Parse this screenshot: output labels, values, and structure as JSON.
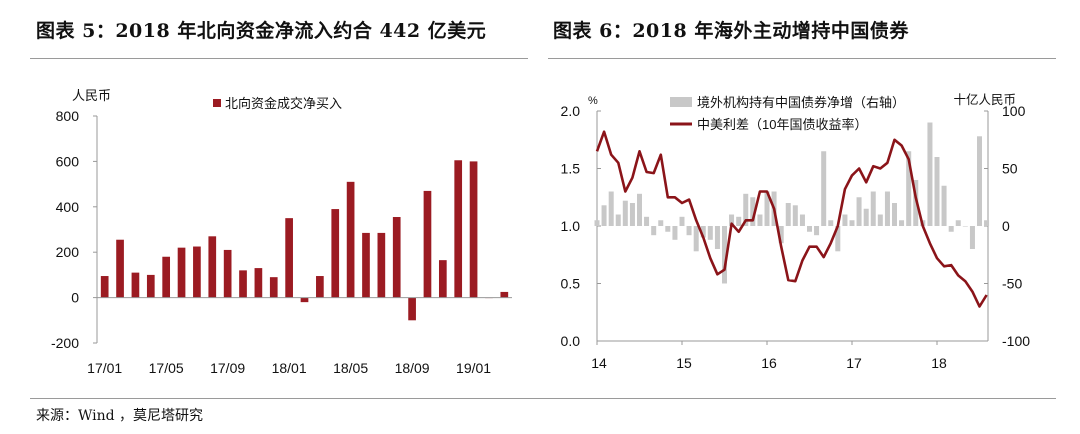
{
  "titles": {
    "left": "图表 5：2018 年北向资金净流入约合 442 亿美元",
    "right": "图表 6：2018 年海外主动增持中国债券"
  },
  "source": "来源：Wind ，莫尼塔研究",
  "colors": {
    "bar_dark_red": "#9b1b22",
    "bar_grey": "#c8c8c8",
    "line_dark_red": "#8b1419",
    "axis": "#999999"
  },
  "chart_data": [
    {
      "type": "bar",
      "unit_label": "人民币",
      "legend": "北向资金成交净买入",
      "legend_position": "top",
      "ylim": [
        -200,
        800
      ],
      "yticks": [
        -200,
        0,
        200,
        400,
        600,
        800
      ],
      "xtick_labels": [
        "17/01",
        "17/05",
        "17/09",
        "18/01",
        "18/05",
        "18/09",
        "19/01"
      ],
      "xtick_index": [
        0,
        4,
        8,
        12,
        16,
        20,
        24
      ],
      "categories": [
        "17/01",
        "17/02",
        "17/03",
        "17/04",
        "17/05",
        "17/06",
        "17/07",
        "17/08",
        "17/09",
        "17/10",
        "17/11",
        "17/12",
        "18/01",
        "18/02",
        "18/03",
        "18/04",
        "18/05",
        "18/06",
        "18/07",
        "18/08",
        "18/09",
        "18/10",
        "18/11",
        "18/12",
        "19/01",
        "19/02",
        "19/03"
      ],
      "series": [
        {
          "name": "北向资金成交净买入",
          "values": [
            95,
            255,
            110,
            100,
            180,
            220,
            225,
            270,
            210,
            120,
            130,
            90,
            350,
            -20,
            95,
            390,
            510,
            285,
            285,
            355,
            -100,
            470,
            165,
            605,
            600,
            0,
            25
          ]
        }
      ]
    },
    {
      "type": "line",
      "left_unit": "%",
      "right_unit": "十亿人民币",
      "ylim_left": [
        0.0,
        2.0
      ],
      "yticks_left": [
        0.0,
        0.5,
        1.0,
        1.5,
        2.0
      ],
      "ylim_right": [
        -100,
        100
      ],
      "yticks_right": [
        -100,
        -50,
        0,
        50,
        100
      ],
      "xlim": [
        14,
        18.6
      ],
      "xticks": [
        14,
        15,
        16,
        17,
        18
      ],
      "legend_position": "top",
      "series": [
        {
          "name": "境外机构持有中国债券净增（右轴）",
          "type": "bar",
          "axis": "right",
          "x": [
            14.0,
            14.083,
            14.167,
            14.25,
            14.333,
            14.417,
            14.5,
            14.583,
            14.667,
            14.75,
            14.833,
            14.917,
            15.0,
            15.083,
            15.167,
            15.25,
            15.333,
            15.417,
            15.5,
            15.583,
            15.667,
            15.75,
            15.833,
            15.917,
            16.0,
            16.083,
            16.167,
            16.25,
            16.333,
            16.417,
            16.5,
            16.583,
            16.667,
            16.75,
            16.833,
            16.917,
            17.0,
            17.083,
            17.167,
            17.25,
            17.333,
            17.417,
            17.5,
            17.583,
            17.667,
            17.75,
            17.833,
            17.917,
            18.0,
            18.083,
            18.167,
            18.25,
            18.333,
            18.417,
            18.5,
            18.583
          ],
          "y": [
            5,
            18,
            30,
            10,
            22,
            20,
            28,
            8,
            -8,
            5,
            -5,
            -12,
            8,
            -8,
            -22,
            -10,
            -12,
            -20,
            -50,
            10,
            8,
            28,
            25,
            10,
            30,
            30,
            -15,
            20,
            18,
            10,
            -5,
            -8,
            65,
            5,
            -22,
            10,
            5,
            25,
            15,
            30,
            10,
            30,
            20,
            5,
            65,
            40,
            5,
            90,
            60,
            35,
            -5,
            5,
            0,
            -20,
            78,
            5
          ]
        },
        {
          "name": "中美利差（10年国债收益率）",
          "type": "line",
          "axis": "left",
          "x": [
            14.0,
            14.083,
            14.167,
            14.25,
            14.333,
            14.417,
            14.5,
            14.583,
            14.667,
            14.75,
            14.833,
            14.917,
            15.0,
            15.083,
            15.167,
            15.25,
            15.333,
            15.417,
            15.5,
            15.583,
            15.667,
            15.75,
            15.833,
            15.917,
            16.0,
            16.083,
            16.167,
            16.25,
            16.333,
            16.417,
            16.5,
            16.583,
            16.667,
            16.75,
            16.833,
            16.917,
            17.0,
            17.083,
            17.167,
            17.25,
            17.333,
            17.417,
            17.5,
            17.583,
            17.667,
            17.75,
            17.833,
            17.917,
            18.0,
            18.083,
            18.167,
            18.25,
            18.333,
            18.417,
            18.5,
            18.583
          ],
          "y": [
            1.65,
            1.82,
            1.62,
            1.55,
            1.3,
            1.42,
            1.65,
            1.47,
            1.46,
            1.62,
            1.25,
            1.25,
            1.2,
            1.23,
            1.05,
            0.9,
            0.72,
            0.58,
            0.62,
            1.02,
            0.95,
            1.05,
            1.05,
            1.3,
            1.3,
            1.15,
            0.82,
            0.53,
            0.52,
            0.7,
            0.82,
            0.82,
            0.73,
            0.85,
            1.0,
            1.32,
            1.44,
            1.5,
            1.38,
            1.52,
            1.5,
            1.55,
            1.75,
            1.7,
            1.58,
            1.25,
            1.0,
            0.85,
            0.72,
            0.65,
            0.66,
            0.57,
            0.52,
            0.43,
            0.3,
            0.4
          ]
        }
      ]
    }
  ]
}
